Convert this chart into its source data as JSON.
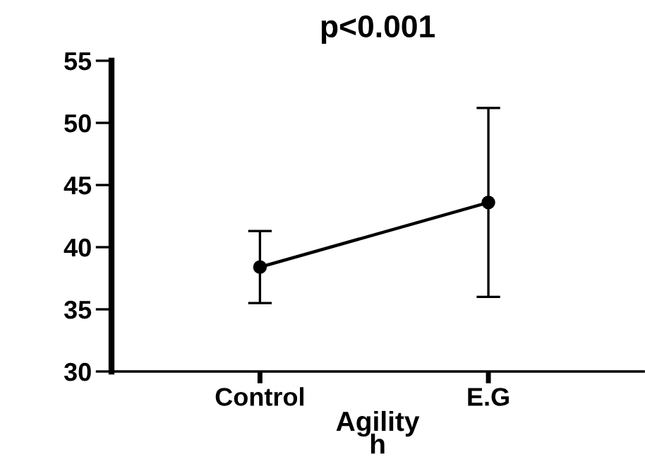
{
  "chart_data": {
    "type": "line",
    "title": "p<0.001",
    "xlabel": "Agility\nh",
    "categories": [
      "Control",
      "E.G"
    ],
    "series": [
      {
        "color": "#000000",
        "values": [
          38.4,
          43.6
        ],
        "errors": [
          2.9,
          7.6
        ]
      }
    ],
    "ylim": [
      30,
      55
    ],
    "yticks": [
      30,
      35,
      40,
      45,
      50,
      55
    ],
    "marker": "circle",
    "line_style": "solid",
    "grid": false
  }
}
